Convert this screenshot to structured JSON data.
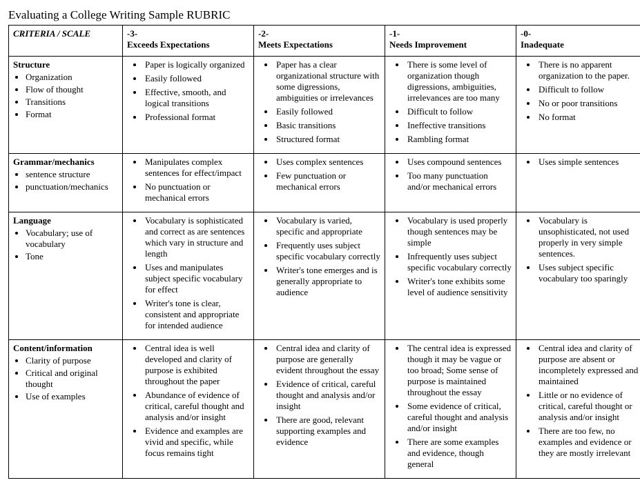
{
  "title": "Evaluating a College Writing Sample RUBRIC",
  "header": {
    "criteria_label": "CRITERIA / SCALE",
    "columns": [
      {
        "num": "-3-",
        "label": "Exceeds Expectations"
      },
      {
        "num": "-2-",
        "label": "Meets Expectations"
      },
      {
        "num": "-1-",
        "label": "Needs Improvement"
      },
      {
        "num": "-0-",
        "label": "Inadequate"
      }
    ]
  },
  "rows": [
    {
      "criteria": "Structure",
      "subpoints": [
        "Organization",
        "Flow of thought",
        "Transitions",
        "Format"
      ],
      "cells": [
        [
          "Paper is logically organized",
          "Easily followed",
          "Effective, smooth, and logical transitions",
          "Professional format"
        ],
        [
          "Paper has a clear organizational structure with some digressions, ambiguities or irrelevances",
          "Easily followed",
          "Basic transitions",
          "Structured format"
        ],
        [
          "There is some level of organization though digressions, ambiguities, irrelevances are too many",
          "Difficult to follow",
          "Ineffective transitions",
          "Rambling format"
        ],
        [
          "There is no apparent organization to the paper.",
          "Difficult to follow",
          "No or poor transitions",
          "No format"
        ]
      ]
    },
    {
      "criteria": "Grammar/mechanics",
      "subpoints": [
        "sentence structure",
        "punctuation/mechanics"
      ],
      "cells": [
        [
          "Manipulates complex sentences for effect/impact",
          "No punctuation or mechanical errors"
        ],
        [
          "Uses complex sentences",
          "Few punctuation or mechanical errors"
        ],
        [
          "Uses compound sentences",
          "Too many punctuation and/or mechanical errors"
        ],
        [
          "Uses simple sentences"
        ]
      ]
    },
    {
      "criteria": "Language",
      "subpoints": [
        "Vocabulary; use of vocabulary",
        "Tone"
      ],
      "cells": [
        [
          "Vocabulary is sophisticated and correct as are sentences which vary in structure and length",
          "Uses and manipulates subject specific vocabulary for effect",
          "Writer's tone is clear, consistent and appropriate for intended audience"
        ],
        [
          "Vocabulary is varied, specific and appropriate",
          "Frequently uses subject specific vocabulary correctly",
          "Writer's tone emerges and is generally appropriate to audience"
        ],
        [
          "Vocabulary is used properly though sentences may be simple",
          "Infrequently uses subject specific vocabulary correctly",
          "Writer's tone exhibits some level of audience sensitivity"
        ],
        [
          "Vocabulary is unsophisticated, not used properly in very simple sentences.",
          "Uses subject specific vocabulary too sparingly"
        ]
      ]
    },
    {
      "criteria": "Content/information",
      "subpoints": [
        "Clarity of purpose",
        "Critical and original thought",
        "Use of examples"
      ],
      "cells": [
        [
          "Central idea is well developed and clarity of purpose is exhibited throughout the paper",
          "Abundance of evidence of critical, careful thought and analysis and/or insight",
          "Evidence and examples are vivid and specific, while focus remains tight"
        ],
        [
          "Central idea and clarity of purpose are generally evident throughout the essay",
          "Evidence of critical, careful thought and analysis and/or insight",
          "There are good, relevant supporting examples and evidence"
        ],
        [
          "The central idea is expressed though it may be vague or too broad; Some sense of purpose is maintained throughout the essay",
          "Some evidence of critical, careful thought and analysis and/or insight",
          "There are some examples and evidence, though general"
        ],
        [
          "Central idea and clarity of purpose are absent or incompletely expressed and maintained",
          "Little or no evidence of critical, careful thought or analysis and/or insight",
          "There are too few, no examples and evidence or they are mostly irrelevant"
        ]
      ]
    }
  ]
}
